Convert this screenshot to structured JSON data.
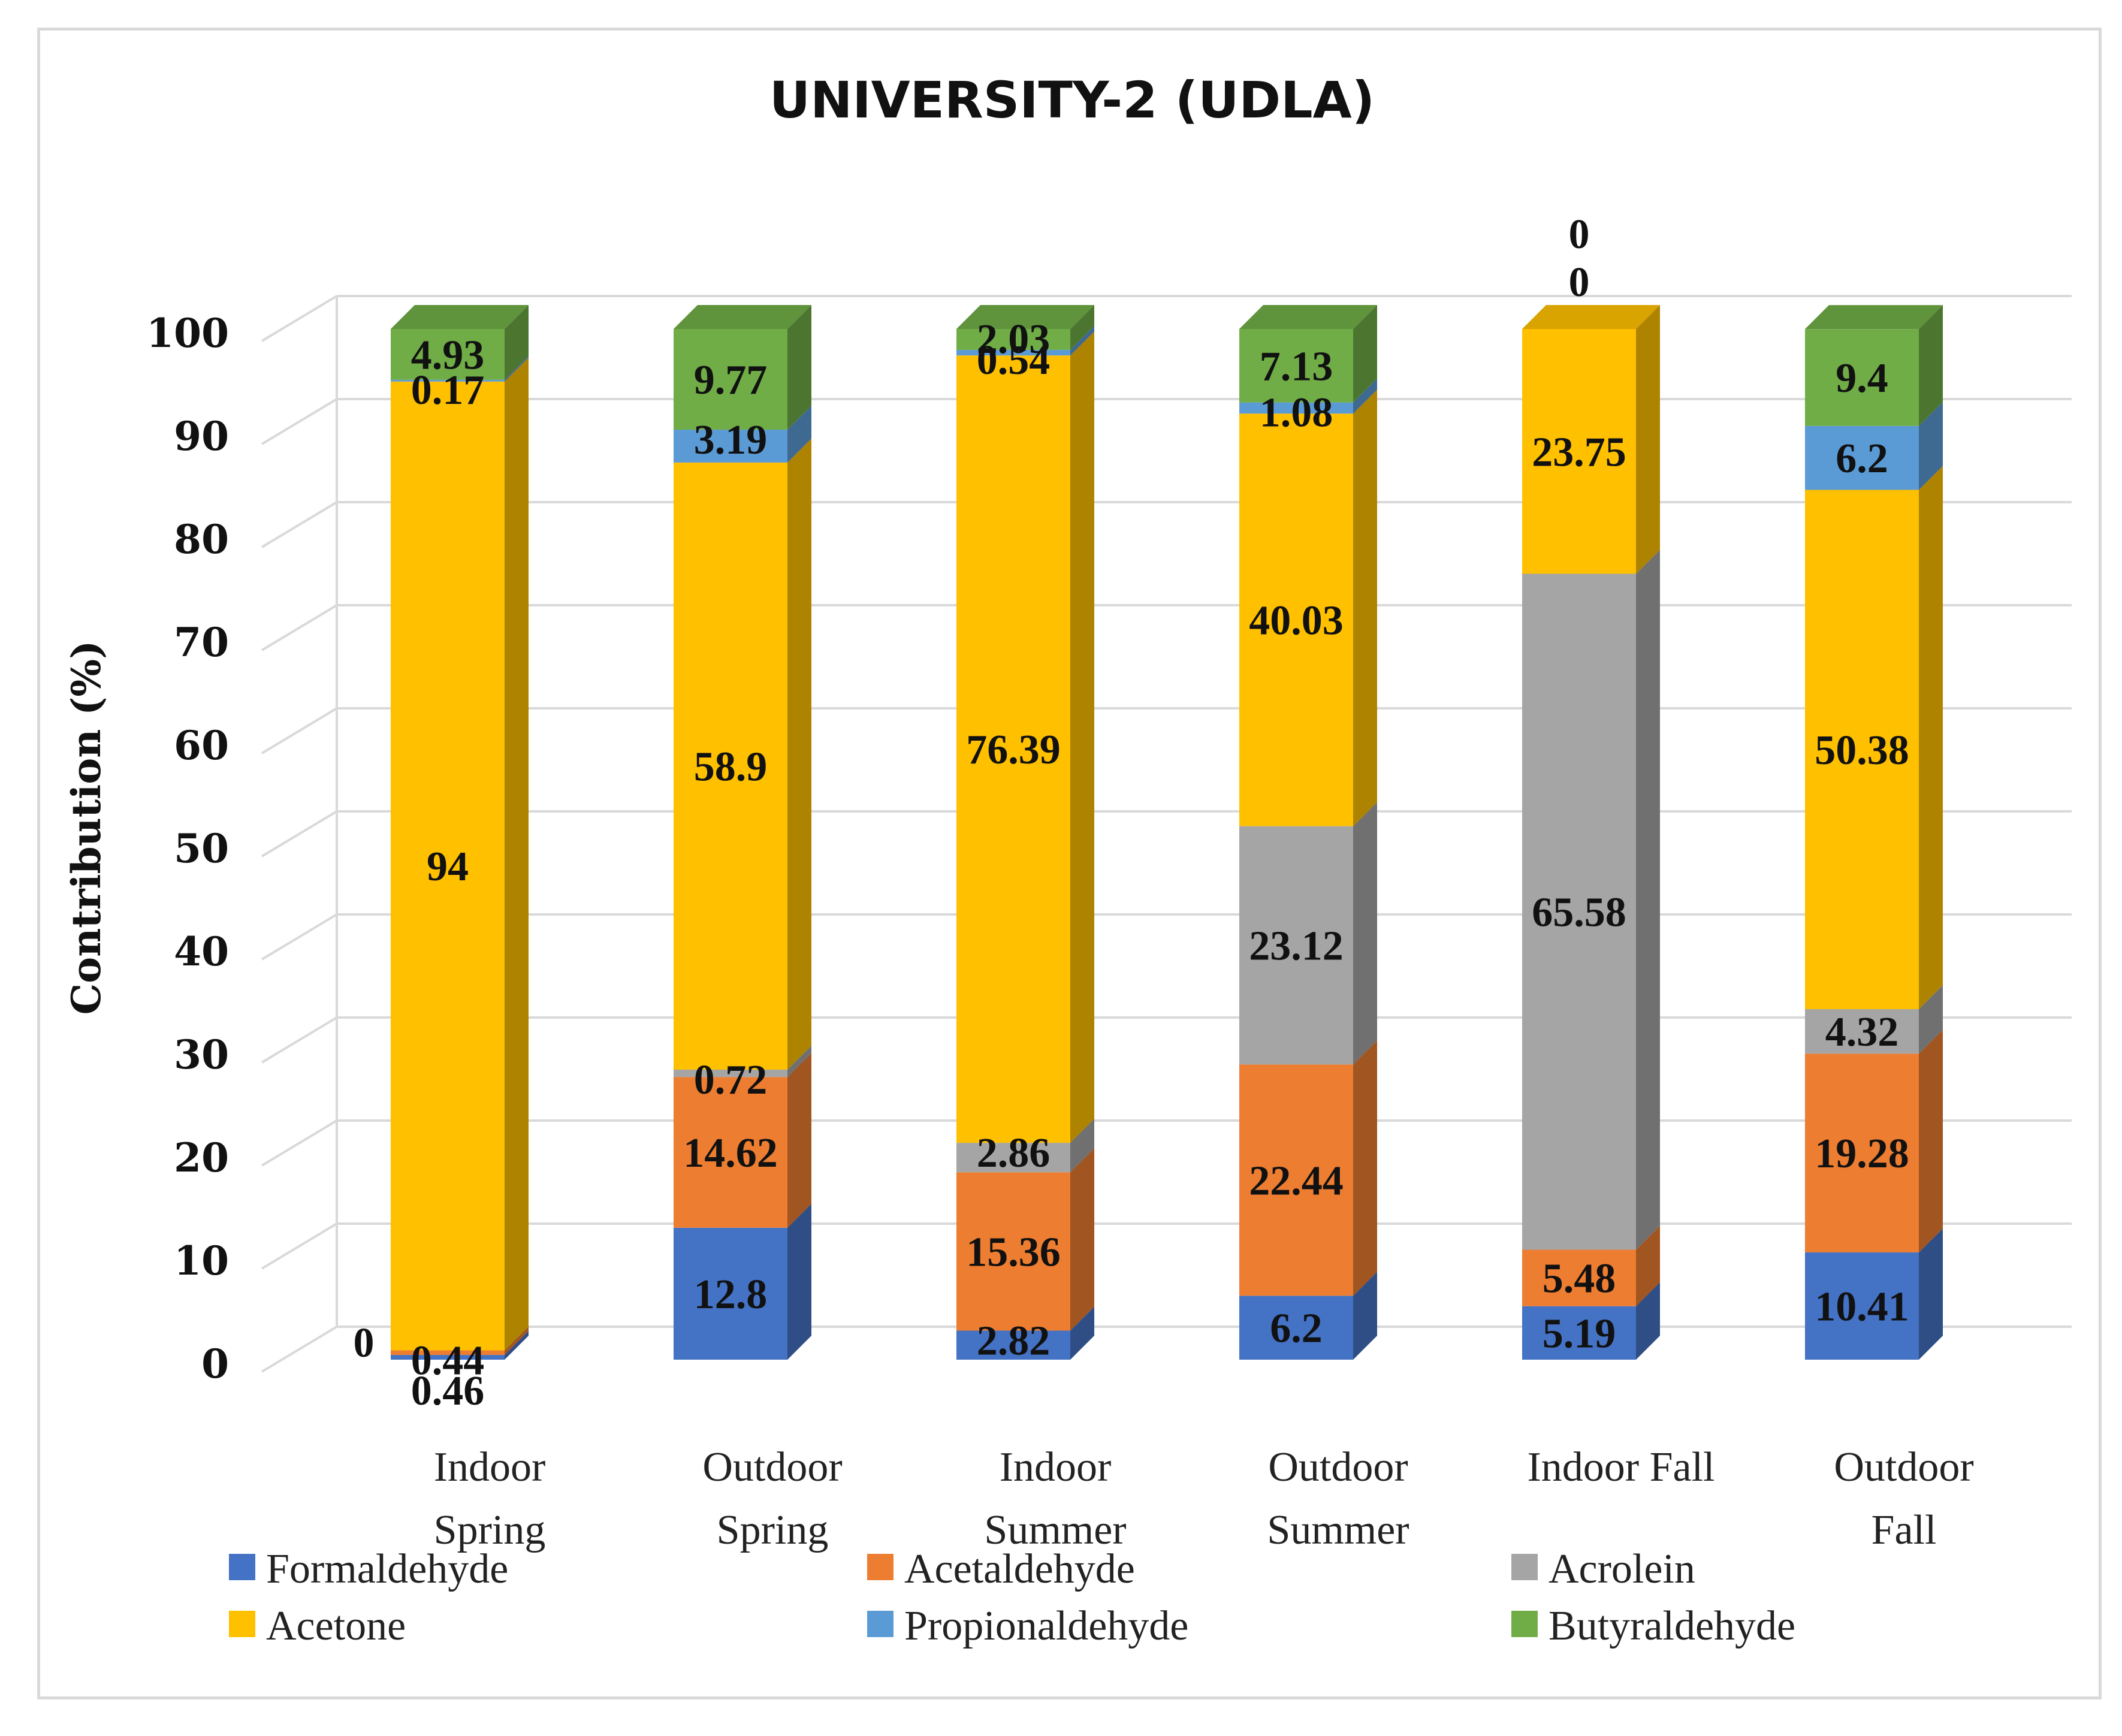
{
  "chart_data": {
    "type": "bar",
    "stacked": true,
    "three_d": true,
    "title": "UNIVERSITY-2 (UDLA)",
    "xlabel": "",
    "ylabel": "Contribution (%)",
    "ylim": [
      0,
      100
    ],
    "yticks": [
      0,
      10,
      20,
      30,
      40,
      50,
      60,
      70,
      80,
      90,
      100
    ],
    "grid": true,
    "legend_position": "bottom",
    "categories": [
      [
        "Indoor",
        "Spring"
      ],
      [
        "Outdoor",
        "Spring"
      ],
      [
        "Indoor",
        "Summer"
      ],
      [
        "Outdoor",
        "Summer"
      ],
      [
        "Indoor  Fall"
      ],
      [
        "Outdoor",
        "Fall"
      ]
    ],
    "series": [
      {
        "name": "Formaldehyde",
        "color": "#4472C4",
        "values": [
          0.46,
          12.8,
          2.82,
          6.2,
          5.19,
          10.41
        ]
      },
      {
        "name": "Acetaldehyde",
        "color": "#ED7D31",
        "values": [
          0.44,
          14.62,
          15.36,
          22.44,
          5.48,
          19.28
        ]
      },
      {
        "name": "Acrolein",
        "color": "#A5A5A5",
        "values": [
          0,
          0.72,
          2.86,
          23.12,
          65.58,
          4.32
        ]
      },
      {
        "name": "Acetone",
        "color": "#FFC000",
        "values": [
          94,
          58.9,
          76.39,
          40.03,
          23.75,
          50.38
        ]
      },
      {
        "name": "Propionaldehyde",
        "color": "#5B9BD5",
        "values": [
          0.17,
          3.19,
          0.54,
          1.08,
          0,
          6.2
        ]
      },
      {
        "name": "Butyraldehyde",
        "color": "#70AD47",
        "values": [
          4.93,
          9.77,
          2.03,
          7.13,
          0,
          9.4
        ]
      }
    ],
    "data_labels": [
      [
        "0.46",
        "0.44",
        "0",
        "94",
        "0.17",
        "4.93"
      ],
      [
        "12.8",
        "14.62",
        "0.72",
        "58.9",
        "3.19",
        "9.77"
      ],
      [
        "2.82",
        "15.36",
        "2.86",
        "76.39",
        "0.54",
        "2.03"
      ],
      [
        "6.2",
        "22.44",
        "23.12",
        "40.03",
        "1.08",
        "7.13"
      ],
      [
        "5.19",
        "5.48",
        "65.58",
        "23.75",
        "0",
        "0"
      ],
      [
        "10.41",
        "19.28",
        "4.32",
        "50.38",
        "6.2",
        "9.4"
      ]
    ]
  }
}
